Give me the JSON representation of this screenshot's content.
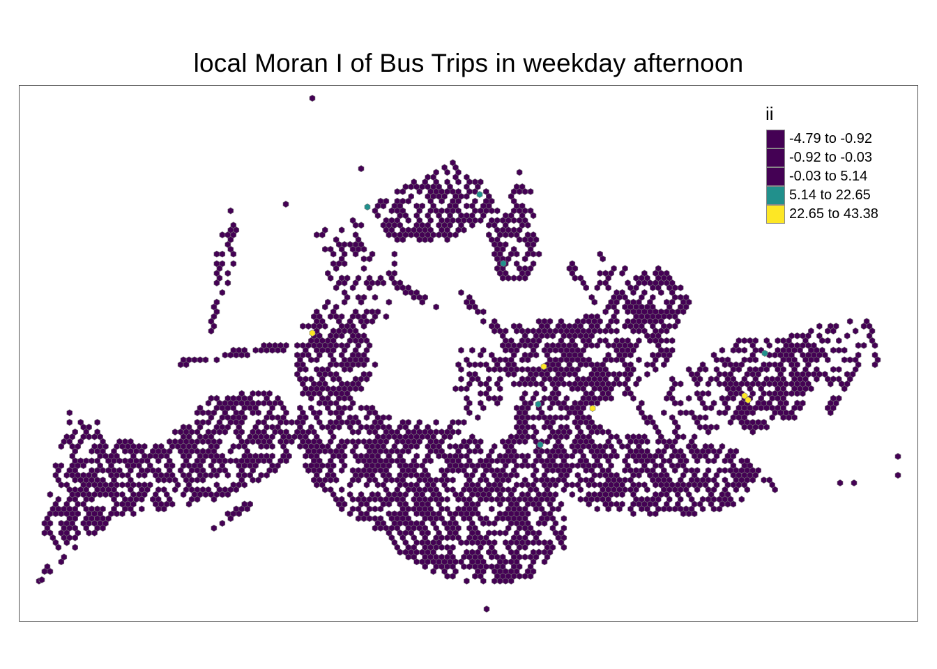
{
  "map": {
    "title": "local Moran I of Bus Trips in weekday afternoon"
  },
  "legend": {
    "title": "ii",
    "items": [
      {
        "label": "-4.79 to -0.92",
        "color": "#440154"
      },
      {
        "label": "-0.92 to -0.03",
        "color": "#440154"
      },
      {
        "label": "-0.03 to 5.14",
        "color": "#440154"
      },
      {
        "label": "5.14 to 22.65",
        "color": "#21908C"
      },
      {
        "label": "22.65 to 43.38",
        "color": "#FDE725"
      }
    ]
  },
  "colors": {
    "base": "#440154",
    "mid": "#21908C",
    "high": "#FDE725",
    "hex_border": "#7a7a7a",
    "frame": "#4d4d4d"
  }
}
